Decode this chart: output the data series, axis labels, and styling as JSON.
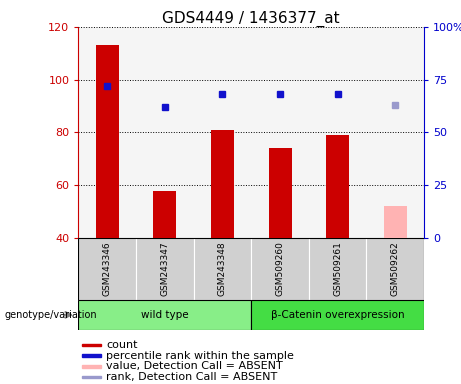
{
  "title": "GDS4449 / 1436377_at",
  "samples": [
    "GSM243346",
    "GSM243347",
    "GSM243348",
    "GSM509260",
    "GSM509261",
    "GSM509262"
  ],
  "bar_values": [
    113,
    58,
    81,
    74,
    79,
    52
  ],
  "bar_colors": [
    "#cc0000",
    "#cc0000",
    "#cc0000",
    "#cc0000",
    "#cc0000",
    "#ffb3b3"
  ],
  "dot_values": [
    72,
    62,
    68,
    68,
    68,
    63
  ],
  "dot_colors": [
    "#1111cc",
    "#1111cc",
    "#1111cc",
    "#1111cc",
    "#1111cc",
    "#9999cc"
  ],
  "ylim_left": [
    40,
    120
  ],
  "ylim_right": [
    0,
    100
  ],
  "yticks_left": [
    40,
    60,
    80,
    100,
    120
  ],
  "yticks_right": [
    0,
    25,
    50,
    75,
    100
  ],
  "ytick_labels_right": [
    "0",
    "25",
    "50",
    "75",
    "100%"
  ],
  "groups": [
    {
      "label": "wild type",
      "start": 0,
      "end": 3,
      "color": "#88ee88"
    },
    {
      "label": "β-Catenin overexpression",
      "start": 3,
      "end": 6,
      "color": "#44dd44"
    }
  ],
  "genotype_label": "genotype/variation",
  "legend_items": [
    {
      "label": "count",
      "color": "#cc0000"
    },
    {
      "label": "percentile rank within the sample",
      "color": "#1111cc"
    },
    {
      "label": "value, Detection Call = ABSENT",
      "color": "#ffb3b3"
    },
    {
      "label": "rank, Detection Call = ABSENT",
      "color": "#9999cc"
    }
  ],
  "plot_bg_color": "#f5f5f5",
  "label_area_color": "#d0d0d0",
  "bar_width": 0.4,
  "left_color": "#cc0000",
  "right_color": "#0000cc",
  "title_fontsize": 11,
  "tick_fontsize": 8,
  "legend_fontsize": 8
}
